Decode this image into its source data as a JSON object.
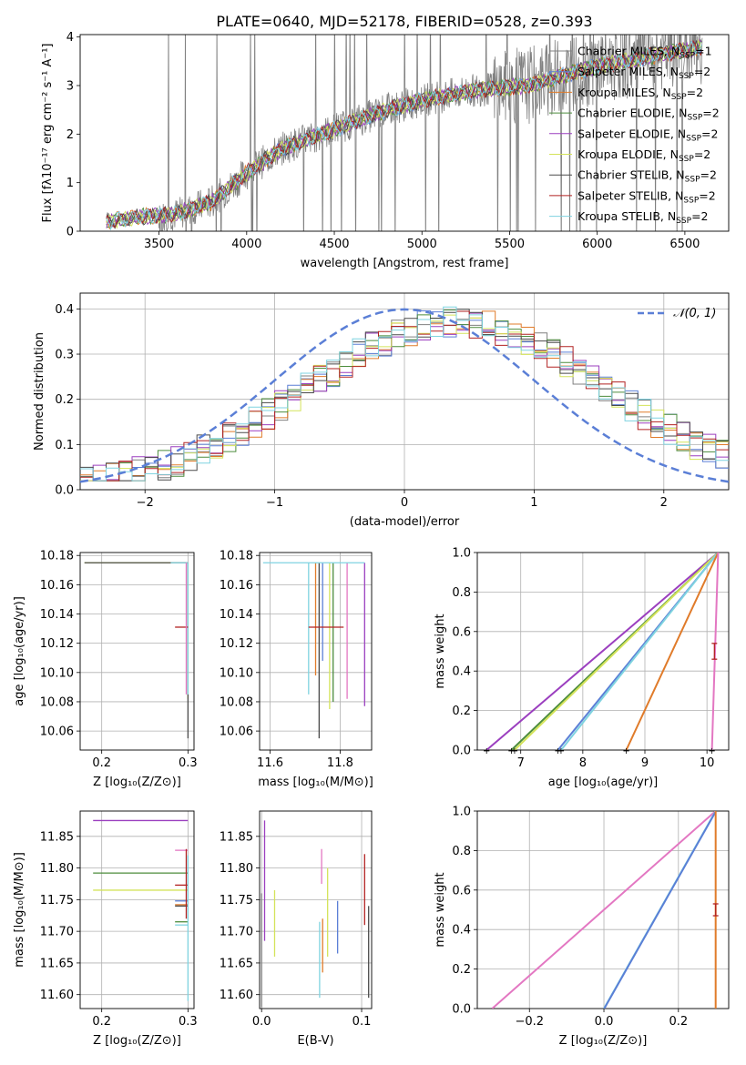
{
  "figure": {
    "title": "PLATE=0640, MJD=52178, FIBERID=0528, z=0.393"
  },
  "legend_models": [
    {
      "label": "Chabrier MILES, N",
      "sub": "SSP",
      "tail": "=1",
      "color": "#808080"
    },
    {
      "label": "Salpeter MILES, N",
      "sub": "SSP",
      "tail": "=2",
      "color": "#5b7fd6"
    },
    {
      "label": "Kroupa MILES, N",
      "sub": "SSP",
      "tail": "=2",
      "color": "#e07b2a"
    },
    {
      "label": "Chabrier ELODIE, N",
      "sub": "SSP",
      "tail": "=2",
      "color": "#4c8c3c"
    },
    {
      "label": "Salpeter ELODIE, N",
      "sub": "SSP",
      "tail": "=2",
      "color": "#9b3fbf"
    },
    {
      "label": "Kroupa ELODIE, N",
      "sub": "SSP",
      "tail": "=2",
      "color": "#d4e35a"
    },
    {
      "label": "Chabrier STELIB, N",
      "sub": "SSP",
      "tail": "=2",
      "color": "#4a4a4a"
    },
    {
      "label": "Salpeter STELIB, N",
      "sub": "SSP",
      "tail": "=2",
      "color": "#b22222"
    },
    {
      "label": "Kroupa STELIB, N",
      "sub": "SSP",
      "tail": "=2",
      "color": "#7fd3e0"
    }
  ],
  "chart_data": [
    {
      "id": "spectrum",
      "type": "line",
      "xlabel": "wavelength [Angstrom, rest frame]",
      "ylabel": "Flux [fλ10⁻¹⁷ erg cm⁻² s⁻¹ A⁻¹]",
      "xlim": [
        3050,
        6750
      ],
      "ylim": [
        0,
        4.05
      ],
      "xticks": [
        "3500",
        "4000",
        "4500",
        "5000",
        "5500",
        "6000",
        "6500"
      ],
      "yticks": [
        "0",
        "1",
        "2",
        "3",
        "4"
      ],
      "x_start": 3200,
      "x_end": 6600,
      "data_color": "#808080",
      "model_trend": {
        "x": [
          3200,
          3400,
          3600,
          3800,
          4000,
          4200,
          4500,
          4800,
          5000,
          5300,
          5600,
          6000,
          6300,
          6600
        ],
        "y": [
          0.2,
          0.3,
          0.35,
          0.6,
          1.2,
          1.7,
          2.1,
          2.5,
          2.7,
          2.9,
          3.0,
          3.4,
          3.6,
          3.8
        ]
      }
    },
    {
      "id": "residuals",
      "type": "line",
      "xlabel": "(data-model)/error",
      "ylabel": "Normed distribution",
      "xlim": [
        -2.5,
        2.5
      ],
      "ylim": [
        0,
        0.435
      ],
      "xticks": [
        "−2",
        "−1",
        "0",
        "1",
        "2"
      ],
      "yticks": [
        "0.0",
        "0.1",
        "0.2",
        "0.3",
        "0.4"
      ],
      "legend": "𝒩(0, 1)",
      "normal_color": "#5b7fd6",
      "bin_width": 0.1
    },
    {
      "id": "age_vs_Z",
      "type": "scatter",
      "xlabel": "Z [log₁₀(Z/Z⊙)]",
      "ylabel": "age [log₁₀(age/yr)]",
      "xlim": [
        0.175,
        0.307
      ],
      "ylim": [
        10.047,
        10.182
      ],
      "xticks": [
        "0.2",
        "0.3"
      ],
      "yticks": [
        "10.06",
        "10.08",
        "10.10",
        "10.12",
        "10.14",
        "10.16",
        "10.18"
      ],
      "points": [
        {
          "x": 0.3,
          "y": 10.175,
          "xlo": 0.18,
          "xhi": 0.3,
          "ylo": 10.082,
          "yhi": 10.175,
          "c": "#d4e35a"
        },
        {
          "x": 0.3,
          "y": 10.175,
          "xlo": 0.18,
          "xhi": 0.3,
          "ylo": 10.055,
          "yhi": 10.175,
          "c": "#4a4a4a"
        },
        {
          "x": 0.3,
          "y": 10.175,
          "xlo": 0.28,
          "xhi": 0.3,
          "ylo": 10.085,
          "yhi": 10.175,
          "c": "#7fd3e0"
        },
        {
          "x": 0.298,
          "y": 10.131,
          "xlo": 0.285,
          "xhi": 0.3,
          "ylo": 10.131,
          "yhi": 10.131,
          "c": "#b22222"
        },
        {
          "x": 0.298,
          "y": 10.175,
          "xlo": 0.298,
          "xhi": 0.298,
          "ylo": 10.085,
          "yhi": 10.175,
          "c": "#e377c2"
        }
      ]
    },
    {
      "id": "age_vs_mass",
      "type": "scatter",
      "xlabel": "mass [log₁₀(M/M⊙)]",
      "ylabel": "",
      "xlim": [
        11.57,
        11.89
      ],
      "ylim": [
        10.047,
        10.182
      ],
      "xticks": [
        "11.6",
        "11.8"
      ],
      "yticks": [
        "10.06",
        "10.08",
        "10.10",
        "10.12",
        "10.14",
        "10.16",
        "10.18"
      ],
      "points": [
        {
          "x": 11.74,
          "y": 10.175,
          "ylo": 10.055,
          "yhi": 10.175,
          "c": "#4a4a4a"
        },
        {
          "x": 11.73,
          "y": 10.175,
          "ylo": 10.098,
          "yhi": 10.175,
          "c": "#e07b2a"
        },
        {
          "x": 11.75,
          "y": 10.175,
          "ylo": 10.108,
          "yhi": 10.175,
          "c": "#5b7fd6"
        },
        {
          "x": 11.78,
          "y": 10.175,
          "ylo": 10.08,
          "yhi": 10.175,
          "c": "#4c8c3c"
        },
        {
          "x": 11.77,
          "y": 10.175,
          "ylo": 10.075,
          "yhi": 10.175,
          "c": "#d4e35a"
        },
        {
          "x": 11.82,
          "y": 10.175,
          "ylo": 10.082,
          "yhi": 10.175,
          "c": "#e377c2"
        },
        {
          "x": 11.87,
          "y": 10.175,
          "ylo": 10.077,
          "yhi": 10.175,
          "c": "#9b3fbf"
        },
        {
          "x": 11.71,
          "y": 10.175,
          "ylo": 10.085,
          "yhi": 10.175,
          "c": "#7fd3e0"
        },
        {
          "x": 11.755,
          "y": 10.131,
          "xlo": 11.71,
          "xhi": 11.81,
          "c": "#b22222"
        },
        {
          "x": 11.75,
          "y": 10.175,
          "xlo": 11.58,
          "xhi": 11.87,
          "c": "#7fd3e0"
        }
      ]
    },
    {
      "id": "mass_weight_vs_age",
      "type": "line",
      "xlabel": "age  [log₁₀(age/yr)]",
      "ylabel": "mass weight",
      "xlim": [
        6.3,
        10.35
      ],
      "ylim": [
        0,
        1.0
      ],
      "xticks": [
        "7",
        "8",
        "9",
        "10"
      ],
      "yticks": [
        "0.0",
        "0.2",
        "0.4",
        "0.6",
        "0.8",
        "1.0"
      ],
      "lines": [
        {
          "x0": 6.45,
          "c": "#9b3fbf"
        },
        {
          "x0": 6.85,
          "c": "#4c8c3c"
        },
        {
          "x0": 6.9,
          "c": "#d4e35a"
        },
        {
          "x0": 7.6,
          "c": "#5b7fd6"
        },
        {
          "x0": 7.65,
          "c": "#7fd3e0"
        },
        {
          "x0": 8.7,
          "c": "#e07b2a"
        },
        {
          "x0": 10.08,
          "c": "#e377c2"
        }
      ],
      "x_end": 10.18,
      "errbar": {
        "x": 10.12,
        "y": 0.5,
        "dy": 0.04,
        "c": "#b22222"
      }
    },
    {
      "id": "mass_vs_Z",
      "type": "scatter",
      "xlabel": "Z [log₁₀(Z/Z⊙)]",
      "ylabel": "mass [log₁₀(M/M⊙)]",
      "xlim": [
        0.175,
        0.307
      ],
      "ylim": [
        11.578,
        11.89
      ],
      "xticks": [
        "0.2",
        "0.3"
      ],
      "yticks": [
        "11.60",
        "11.65",
        "11.70",
        "11.75",
        "11.80",
        "11.85"
      ],
      "hlines": [
        {
          "y": 11.875,
          "x0": 0.19,
          "x1": 0.3,
          "c": "#9b3fbf"
        },
        {
          "y": 11.792,
          "x0": 0.19,
          "x1": 0.3,
          "c": "#4c8c3c"
        },
        {
          "y": 11.765,
          "x0": 0.19,
          "x1": 0.3,
          "c": "#d4e35a"
        },
        {
          "y": 11.828,
          "x0": 0.285,
          "x1": 0.3,
          "c": "#e377c2"
        },
        {
          "y": 11.773,
          "x0": 0.285,
          "x1": 0.3,
          "c": "#b22222"
        },
        {
          "y": 11.748,
          "x0": 0.285,
          "x1": 0.3,
          "c": "#5b7fd6"
        },
        {
          "y": 11.742,
          "x0": 0.285,
          "x1": 0.3,
          "c": "#e07b2a"
        },
        {
          "y": 11.74,
          "x0": 0.285,
          "x1": 0.3,
          "c": "#4a4a4a"
        },
        {
          "y": 11.715,
          "x0": 0.285,
          "x1": 0.3,
          "c": "#4c8c3c"
        },
        {
          "y": 11.71,
          "x0": 0.285,
          "x1": 0.3,
          "c": "#7fd3e0"
        }
      ],
      "vlines": [
        {
          "x": 0.298,
          "y0": 11.72,
          "y1": 11.83,
          "c": "#b22222"
        },
        {
          "x": 0.3,
          "y0": 11.59,
          "y1": 11.82,
          "c": "#7fd3e0"
        }
      ]
    },
    {
      "id": "mass_vs_ebv",
      "type": "scatter",
      "xlabel": "E(B-V)",
      "ylabel": "",
      "xlim": [
        -0.002,
        0.11
      ],
      "ylim": [
        11.578,
        11.89
      ],
      "xticks": [
        "0.0",
        "0.1"
      ],
      "yticks": [
        "11.60",
        "11.65",
        "11.70",
        "11.75",
        "11.80",
        "11.85"
      ],
      "vlines": [
        {
          "x": 0.0,
          "y0": 11.58,
          "y1": 11.76,
          "c": "#808080"
        },
        {
          "x": 0.003,
          "y0": 11.685,
          "y1": 11.875,
          "c": "#9b3fbf"
        },
        {
          "x": 0.013,
          "y0": 11.66,
          "y1": 11.765,
          "c": "#d4e35a"
        },
        {
          "x": 0.058,
          "y0": 11.595,
          "y1": 11.715,
          "c": "#7fd3e0"
        },
        {
          "x": 0.06,
          "y0": 11.775,
          "y1": 11.83,
          "c": "#e377c2"
        },
        {
          "x": 0.061,
          "y0": 11.635,
          "y1": 11.72,
          "c": "#e07b2a"
        },
        {
          "x": 0.066,
          "y0": 11.66,
          "y1": 11.8,
          "c": "#d4e35a"
        },
        {
          "x": 0.076,
          "y0": 11.665,
          "y1": 11.748,
          "c": "#5b7fd6"
        },
        {
          "x": 0.103,
          "y0": 11.71,
          "y1": 11.822,
          "c": "#b22222"
        },
        {
          "x": 0.107,
          "y0": 11.595,
          "y1": 11.74,
          "c": "#4a4a4a"
        }
      ]
    },
    {
      "id": "mass_weight_vs_Z",
      "type": "line",
      "xlabel": "Z [log₁₀(Z/Z⊙)]",
      "ylabel": "mass weight",
      "xlim": [
        -0.34,
        0.335
      ],
      "ylim": [
        0,
        1.0
      ],
      "xticks": [
        "−0.2",
        "0.0",
        "0.2"
      ],
      "yticks": [
        "0.0",
        "0.2",
        "0.4",
        "0.6",
        "0.8",
        "1.0"
      ],
      "lines": [
        {
          "x0": -0.3,
          "x1": 0.3,
          "c": "#e377c2"
        },
        {
          "x0": 0.0,
          "x1": 0.3,
          "c": "#7fd3e0"
        },
        {
          "x0": 0.001,
          "x1": 0.301,
          "c": "#5b7fd6"
        },
        {
          "x0": 0.3,
          "x1": 0.3,
          "c": "#e07b2a"
        }
      ],
      "errbar": {
        "x": 0.3,
        "y": 0.5,
        "dy": 0.03,
        "c": "#b22222"
      }
    }
  ]
}
